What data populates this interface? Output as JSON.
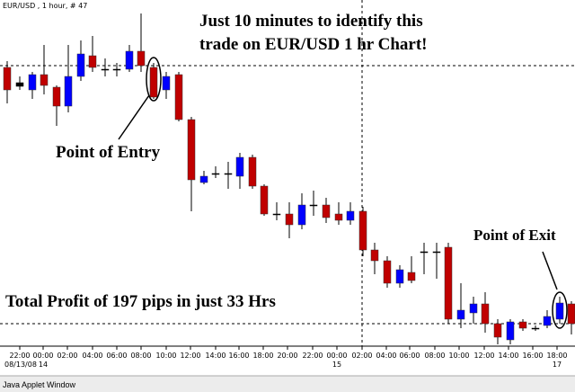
{
  "header": {
    "caption": "EUR/USD , 1 hour, # 47"
  },
  "annotations": {
    "headline": [
      "Just 10 minutes to identify this",
      "trade on EUR/USD 1 hr Chart!"
    ],
    "entry_label": "Point of Entry",
    "exit_label": "Point of Exit",
    "profit_label": "Total Profit of 197 pips in just 33 Hrs"
  },
  "x_axis": {
    "time_labels": [
      "22:00",
      "00:00",
      "02:00",
      "04:00",
      "06:00",
      "08:00",
      "10:00",
      "12:00",
      "14:00",
      "16:00",
      "18:00",
      "20:00",
      "22:00",
      "00:00",
      "02:00",
      "04:00",
      "06:00",
      "08:00",
      "10:00",
      "12:00",
      "14:00",
      "16:00",
      "18:00"
    ],
    "date_labels": [
      "08/13/08",
      "14",
      "15",
      "17"
    ]
  },
  "footer": {
    "text": "Java Applet Window"
  }
}
